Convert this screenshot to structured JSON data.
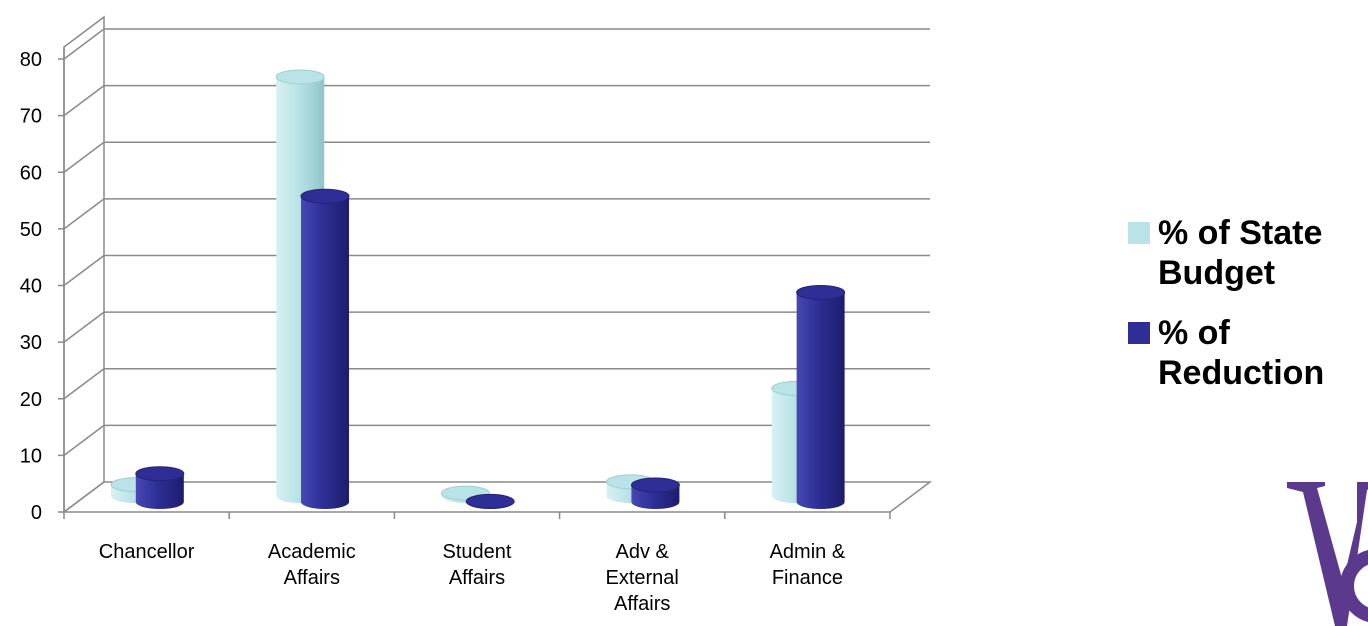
{
  "chart_data": {
    "type": "bar",
    "style": "3d-cylinder",
    "categories": [
      "Chancellor",
      "Academic\nAffairs",
      "Student\nAffairs",
      "Adv &\nExternal\nAffairs",
      "Admin &\nFinance"
    ],
    "series": [
      {
        "name": "% of State Budget",
        "values": [
          2,
          74,
          0.5,
          2.5,
          19
        ],
        "color": "#b9e3e6"
      },
      {
        "name": "% of Reduction",
        "values": [
          5,
          54,
          0.1,
          3,
          37
        ],
        "color": "#2e2e96"
      }
    ],
    "yticks": [
      0,
      10,
      20,
      30,
      40,
      50,
      60,
      70,
      80
    ],
    "ylim": [
      0,
      80
    ],
    "grid": true,
    "legend_position": "right",
    "title": "",
    "xlabel": "",
    "ylabel": ""
  },
  "legend": {
    "items": [
      {
        "label": "% of State\nBudget",
        "color": "#b9e3e6"
      },
      {
        "label": "% of\nReduction",
        "color": "#2e2e96"
      }
    ]
  },
  "logo": {
    "color": "#5b3a8e"
  }
}
